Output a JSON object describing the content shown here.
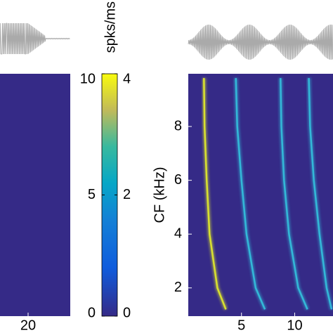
{
  "chart_data": [
    {
      "type": "heatmap",
      "xlim": [
        0,
        50
      ],
      "xticks": [
        20
      ],
      "color": "#352a87"
    },
    {
      "type": "colorbar",
      "label": "spks/ms",
      "ylim": [
        0,
        10
      ],
      "yticks": [
        0,
        5,
        10
      ],
      "y2lim": [
        0,
        4
      ],
      "y2ticks": [
        0,
        2,
        4
      ]
    },
    {
      "type": "line",
      "ylabel": "CF (kHz)",
      "xlim": [
        0,
        13.6
      ],
      "ylim": [
        0.95,
        9.96
      ],
      "xticks": [
        5,
        10
      ],
      "yticks": [
        2,
        4,
        6,
        8
      ],
      "background": "#352a87",
      "series": [
        {
          "color": "#d8e030",
          "x": [
            1.47,
            1.53,
            1.73,
            2.0,
            2.73,
            3.53
          ],
          "values": [
            9.8,
            8,
            6,
            4,
            2,
            1.2
          ]
        },
        {
          "color": "#33b8d8",
          "x": [
            4.47,
            4.6,
            5.0,
            5.47,
            6.33,
            7.2
          ],
          "values": [
            9.8,
            8,
            6,
            4,
            2,
            1.2
          ]
        },
        {
          "color": "#33b8d8",
          "x": [
            8.67,
            8.75,
            9.0,
            9.47,
            10.33,
            11.2
          ],
          "values": [
            9.8,
            8,
            6,
            4,
            2,
            1.2
          ]
        },
        {
          "color": "#33b8d8",
          "x": [
            11.33,
            11.45,
            11.8,
            12.33,
            13.0,
            13.47
          ],
          "values": [
            9.8,
            8,
            6,
            4,
            2,
            1.2
          ]
        }
      ]
    }
  ]
}
